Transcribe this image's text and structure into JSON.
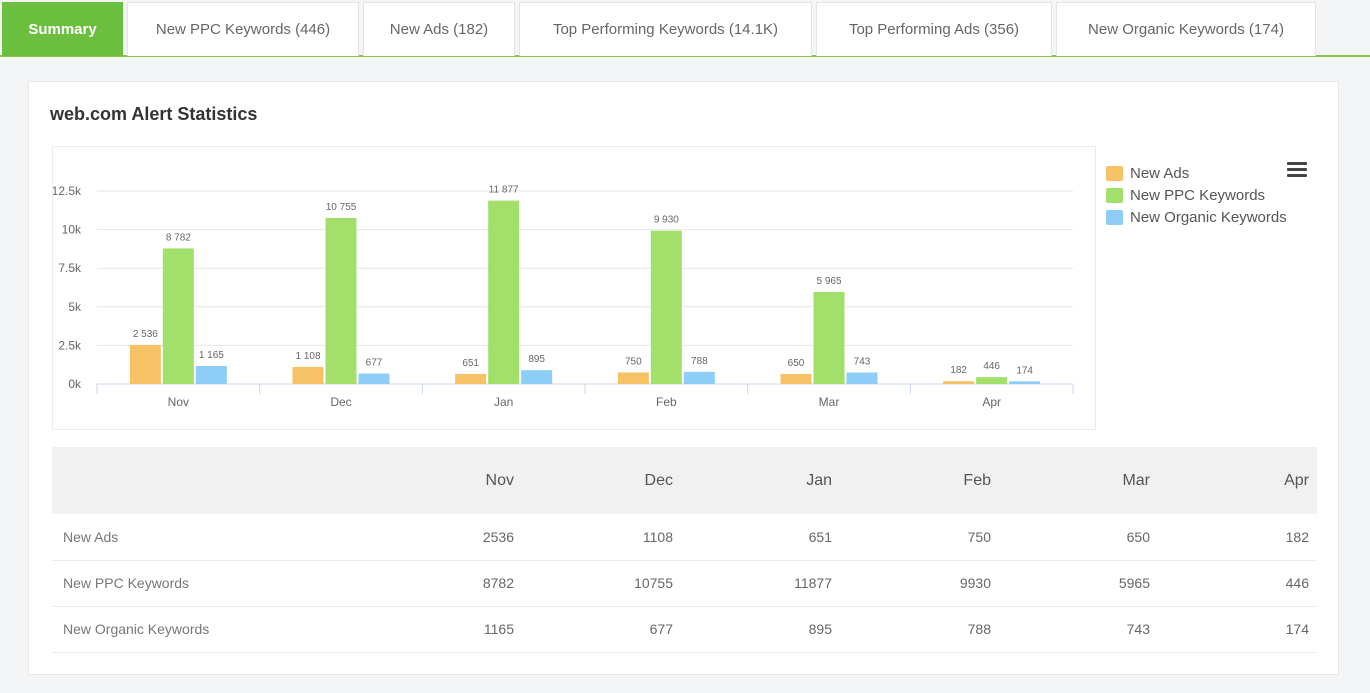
{
  "tabs": [
    {
      "label": "Summary",
      "active": true
    },
    {
      "label": "New PPC Keywords (446)",
      "active": false
    },
    {
      "label": "New Ads (182)",
      "active": false
    },
    {
      "label": "Top Performing Keywords (14.1K)",
      "active": false
    },
    {
      "label": "Top Performing Ads (356)",
      "active": false
    },
    {
      "label": "New Organic Keywords (174)",
      "active": false
    }
  ],
  "card": {
    "title": "web.com Alert Statistics"
  },
  "chart_data": {
    "type": "bar",
    "categories": [
      "Nov",
      "Dec",
      "Jan",
      "Feb",
      "Mar",
      "Apr"
    ],
    "series": [
      {
        "name": "New Ads",
        "color": "#f7c265",
        "values": [
          2536,
          1108,
          651,
          750,
          650,
          182
        ],
        "labels": [
          "2 536",
          "1 108",
          "651",
          "750",
          "650",
          "182"
        ]
      },
      {
        "name": "New PPC Keywords",
        "color": "#a3e06b",
        "values": [
          8782,
          10755,
          11877,
          9930,
          5965,
          446
        ],
        "labels": [
          "8 782",
          "10 755",
          "11 877",
          "9 930",
          "5 965",
          "446"
        ]
      },
      {
        "name": "New Organic Keywords",
        "color": "#8ecdf5",
        "values": [
          1165,
          677,
          895,
          788,
          743,
          174
        ],
        "labels": [
          "1 165",
          "677",
          "895",
          "788",
          "743",
          "174"
        ]
      }
    ],
    "y_ticks": [
      "0k",
      "2.5k",
      "5k",
      "7.5k",
      "10k",
      "12.5k"
    ],
    "y_tick_values": [
      0,
      2500,
      5000,
      7500,
      10000,
      12500
    ],
    "ylim": [
      0,
      12500
    ],
    "legend_position": "top-right",
    "grid": true
  },
  "table": {
    "headers": [
      "",
      "Nov",
      "Dec",
      "Jan",
      "Feb",
      "Mar",
      "Apr"
    ],
    "rows": [
      [
        "New Ads",
        "2536",
        "1108",
        "651",
        "750",
        "650",
        "182"
      ],
      [
        "New PPC Keywords",
        "8782",
        "10755",
        "11877",
        "9930",
        "5965",
        "446"
      ],
      [
        "New Organic Keywords",
        "1165",
        "677",
        "895",
        "788",
        "743",
        "174"
      ]
    ]
  },
  "icons": {
    "menu": "hamburger-menu-icon"
  }
}
